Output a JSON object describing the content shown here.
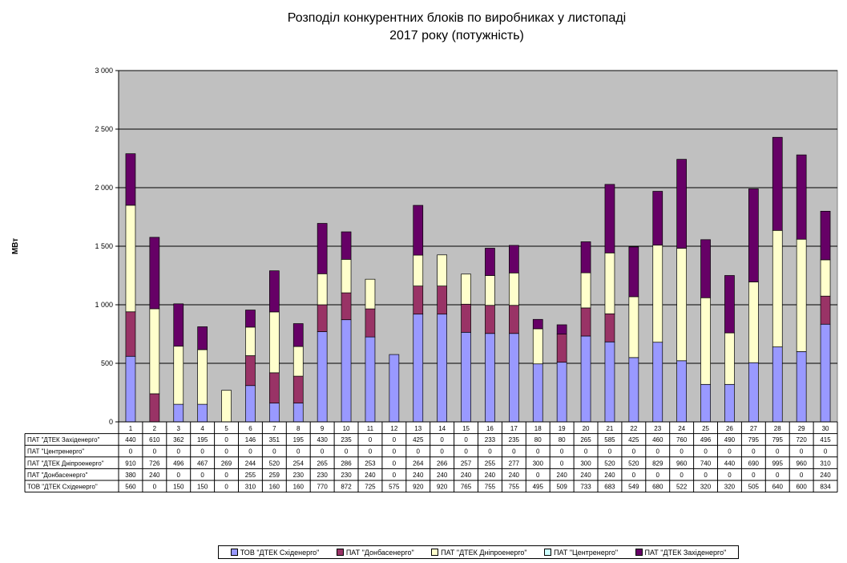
{
  "chart_data": {
    "type": "bar",
    "stacked": true,
    "title_line1": "Розподіл конкурентних  блоків по виробниках  у листопаді",
    "title_line2": "2017 року  (потужність)",
    "ylabel": "МВт",
    "ylim": [
      0,
      3000
    ],
    "yticks": [
      "0",
      "500",
      "1 000",
      "1 500",
      "2 000",
      "2 500",
      "3 000"
    ],
    "grid": true,
    "legend_position": "bottom",
    "categories": [
      "1",
      "2",
      "3",
      "4",
      "5",
      "6",
      "7",
      "8",
      "9",
      "10",
      "11",
      "12",
      "13",
      "14",
      "15",
      "16",
      "17",
      "18",
      "19",
      "20",
      "21",
      "22",
      "23",
      "24",
      "25",
      "26",
      "27",
      "28",
      "29",
      "30"
    ],
    "series": [
      {
        "name": "ТОВ \"ДТЕК Східенерго\"",
        "color": "#9999FF",
        "values": [
          560,
          0,
          150,
          150,
          0,
          310,
          160,
          160,
          770,
          872,
          725,
          575,
          920,
          920,
          765,
          755,
          755,
          495,
          509,
          733,
          683,
          549,
          680,
          522,
          320,
          320,
          505,
          640,
          600,
          834
        ]
      },
      {
        "name": "ПАТ \"Донбасенерго\"",
        "color": "#993366",
        "values": [
          380,
          240,
          0,
          0,
          0,
          255,
          259,
          230,
          230,
          230,
          240,
          0,
          240,
          240,
          240,
          240,
          240,
          0,
          240,
          240,
          240,
          0,
          0,
          0,
          0,
          0,
          0,
          0,
          0,
          240
        ]
      },
      {
        "name": "ПАТ \"ДТЕК Дніпроенерго\"",
        "color": "#FFFFCC",
        "values": [
          910,
          726,
          496,
          467,
          269,
          244,
          520,
          254,
          265,
          286,
          253,
          0,
          264,
          266,
          257,
          255,
          277,
          300,
          0,
          300,
          520,
          520,
          829,
          960,
          740,
          440,
          690,
          995,
          960,
          310
        ]
      },
      {
        "name": "ПАТ \"Центренерго\"",
        "color": "#CCFFFF",
        "values": [
          0,
          0,
          0,
          0,
          0,
          0,
          0,
          0,
          0,
          0,
          0,
          0,
          0,
          0,
          0,
          0,
          0,
          0,
          0,
          0,
          0,
          0,
          0,
          0,
          0,
          0,
          0,
          0,
          0,
          0
        ]
      },
      {
        "name": "ПАТ \"ДТЕК Західенерго\"",
        "color": "#660066",
        "values": [
          440,
          610,
          362,
          195,
          0,
          146,
          351,
          195,
          430,
          235,
          0,
          0,
          425,
          0,
          0,
          233,
          235,
          80,
          80,
          265,
          585,
          425,
          460,
          760,
          496,
          490,
          795,
          795,
          720,
          415
        ]
      }
    ],
    "table_row_order": [
      4,
      3,
      2,
      1,
      0
    ],
    "plot_background": "#C0C0C0"
  }
}
